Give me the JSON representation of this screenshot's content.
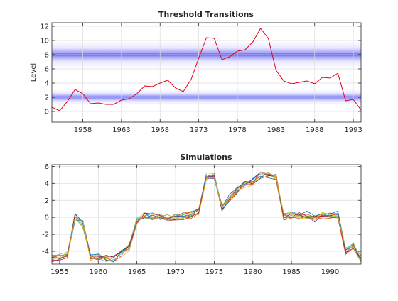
{
  "chart_data": [
    {
      "type": "line",
      "title": "Threshold Transitions",
      "xlabel": "",
      "ylabel": "Level",
      "xlim": [
        1954,
        1994
      ],
      "ylim": [
        -1.5,
        12.5
      ],
      "x_ticks": [
        1958,
        1963,
        1968,
        1973,
        1978,
        1983,
        1988,
        1993
      ],
      "y_ticks": [
        0,
        2,
        4,
        6,
        8,
        10,
        12
      ],
      "grid": true,
      "band_color": "#3a3af0",
      "threshold_bands": [
        {
          "center": 8.0,
          "spread": 1.2
        },
        {
          "center": 2.0,
          "spread": 0.7
        }
      ],
      "series": [
        {
          "color": "#e0001b",
          "x": [
            1954,
            1955,
            1956,
            1957,
            1958,
            1959,
            1960,
            1961,
            1962,
            1963,
            1964,
            1965,
            1966,
            1967,
            1968,
            1969,
            1970,
            1971,
            1972,
            1973,
            1974,
            1975,
            1976,
            1977,
            1978,
            1979,
            1980,
            1981,
            1982,
            1983,
            1984,
            1985,
            1986,
            1987,
            1988,
            1989,
            1990,
            1991,
            1992,
            1993,
            1994
          ],
          "values": [
            0.6,
            0.1,
            1.4,
            3.1,
            2.5,
            1.1,
            1.2,
            1.0,
            1.0,
            1.6,
            1.8,
            2.5,
            3.6,
            3.5,
            4.0,
            4.4,
            3.3,
            2.8,
            4.5,
            7.5,
            10.4,
            10.3,
            7.3,
            7.7,
            8.5,
            8.7,
            9.8,
            11.7,
            10.3,
            5.8,
            4.3,
            3.9,
            4.1,
            4.3,
            3.9,
            4.8,
            4.7,
            5.4,
            1.5,
            1.7,
            0.2
          ]
        }
      ]
    },
    {
      "type": "line",
      "title": "Simulations",
      "xlabel": "",
      "ylabel": "",
      "xlim": [
        1954,
        1994
      ],
      "ylim": [
        -5.5,
        6.2
      ],
      "x_ticks": [
        1955,
        1960,
        1965,
        1970,
        1975,
        1980,
        1985,
        1990
      ],
      "y_ticks": [
        -4,
        -2,
        0,
        2,
        4,
        6
      ],
      "grid": true,
      "x": [
        1954,
        1955,
        1956,
        1957,
        1958,
        1959,
        1960,
        1961,
        1962,
        1963,
        1964,
        1965,
        1966,
        1967,
        1968,
        1969,
        1970,
        1971,
        1972,
        1973,
        1974,
        1975,
        1976,
        1977,
        1978,
        1979,
        1980,
        1981,
        1982,
        1983,
        1984,
        1985,
        1986,
        1987,
        1988,
        1989,
        1990,
        1991,
        1992,
        1993,
        1994
      ],
      "base_path": [
        -4.8,
        -4.7,
        -4.5,
        0.0,
        -0.8,
        -4.7,
        -4.6,
        -4.8,
        -4.9,
        -4.2,
        -3.6,
        -0.5,
        0.2,
        0.1,
        0.0,
        -0.1,
        0.0,
        0.1,
        0.3,
        0.7,
        4.8,
        4.9,
        1.2,
        2.3,
        3.3,
        3.9,
        4.2,
        5.0,
        5.1,
        4.8,
        0.0,
        0.3,
        0.2,
        0.3,
        -0.1,
        0.2,
        0.1,
        0.3,
        -4.0,
        -3.3,
        -4.9
      ],
      "num_simulations": 10,
      "series_colors": [
        "#0072bd",
        "#d95319",
        "#edb120",
        "#7e2f8e",
        "#77ac30",
        "#4dbeee",
        "#a2142f",
        "#0072bd",
        "#d95319",
        "#edb120"
      ]
    }
  ]
}
